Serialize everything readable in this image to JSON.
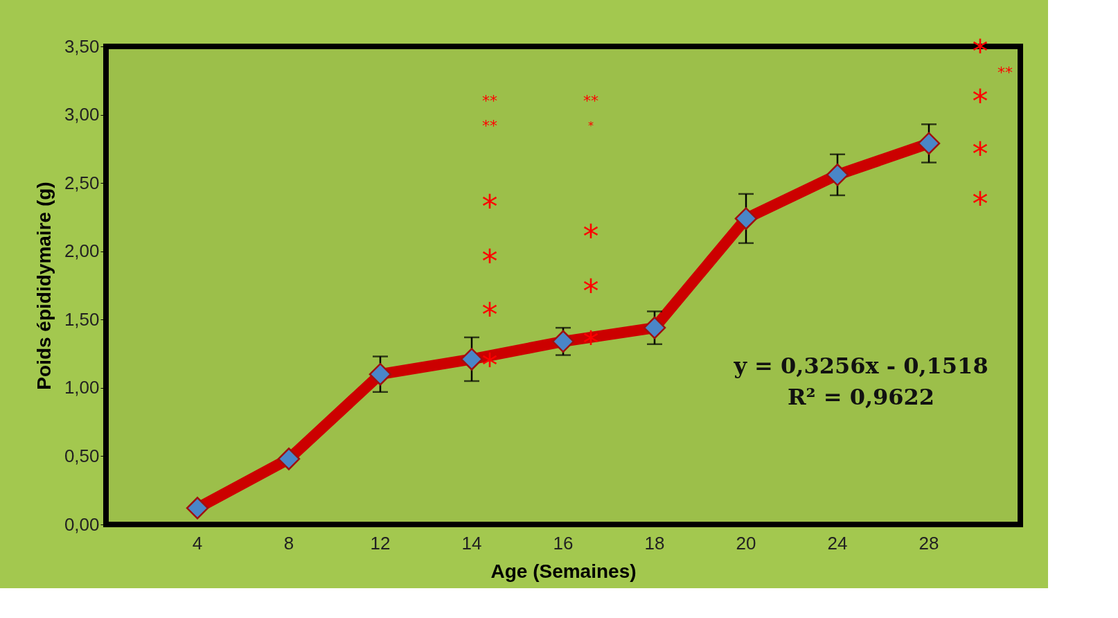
{
  "chart_data": {
    "type": "line",
    "xlabel": "Age (Semaines)",
    "ylabel": "Poids épididymaire (g)",
    "categories": [
      "4",
      "8",
      "12",
      "14",
      "16",
      "18",
      "20",
      "24",
      "28"
    ],
    "series": [
      {
        "color": "#cc0000",
        "values": [
          0.12,
          0.48,
          1.1,
          1.21,
          1.34,
          1.44,
          2.24,
          2.56,
          2.79
        ],
        "errors": [
          null,
          null,
          0.13,
          0.16,
          0.1,
          0.12,
          0.18,
          0.15,
          0.14
        ]
      }
    ],
    "ylim": [
      0,
      3.5
    ],
    "yticks": [
      {
        "value": 0,
        "label": "0,00"
      },
      {
        "value": 0.5,
        "label": "0,50"
      },
      {
        "value": 1,
        "label": "1,00"
      },
      {
        "value": 1.5,
        "label": "1,50"
      },
      {
        "value": 2,
        "label": "2,00"
      },
      {
        "value": 2.5,
        "label": "2,50"
      },
      {
        "value": 3,
        "label": "3,00"
      },
      {
        "value": 3.5,
        "label": "3,50"
      }
    ],
    "marker": "diamond",
    "grid": false,
    "annotations": [
      "**",
      "**",
      "*",
      "*",
      "*",
      "*",
      "**",
      "*",
      "*",
      "*",
      "*",
      "*",
      "**",
      "*",
      "*",
      "*",
      "y = 0,3256x - 0,1518",
      "R² = 0,9622"
    ]
  }
}
